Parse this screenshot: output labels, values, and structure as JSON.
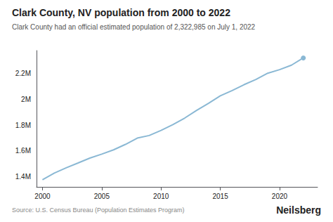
{
  "chart_data": {
    "type": "line",
    "title": "Clark County, NV population from 2000 to 2022",
    "subtitle": "Clark County had an official estimated population of 2,322,985 on July 1, 2022",
    "annotations": [
      "Source: U.S. Census Bureau (Population Estimates Program)",
      "Neilsberg"
    ],
    "x": [
      2000,
      2001,
      2002,
      2003,
      2004,
      2005,
      2006,
      2007,
      2008,
      2009,
      2010,
      2011,
      2012,
      2013,
      2014,
      2015,
      2016,
      2017,
      2018,
      2019,
      2020,
      2021,
      2022
    ],
    "values": [
      1375765,
      1427553,
      1468301,
      1505999,
      1543979,
      1575034,
      1608204,
      1650516,
      1699306,
      1719541,
      1758779,
      1803897,
      1855438,
      1914938,
      1969975,
      2027868,
      2069681,
      2114801,
      2155664,
      2204079,
      2231647,
      2266715,
      2322985
    ],
    "color": "#8ab8d4",
    "xlim": [
      1999.5,
      2023.2
    ],
    "xticks": [
      2000,
      2005,
      2010,
      2015,
      2020
    ],
    "ylim": [
      1320000,
      2380000
    ],
    "yticks": [
      {
        "value": 1400000,
        "label": "1.4M"
      },
      {
        "value": 1600000,
        "label": "1.6M"
      },
      {
        "value": 1800000,
        "label": "1.8M"
      },
      {
        "value": 2000000,
        "label": "2M"
      },
      {
        "value": 2200000,
        "label": "2.2M"
      }
    ],
    "grid": false
  }
}
